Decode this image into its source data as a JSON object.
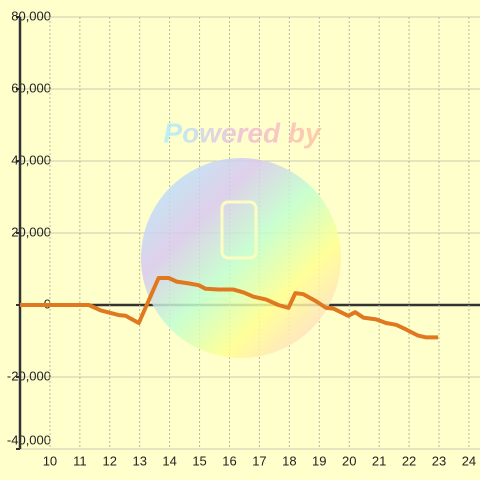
{
  "chart_data": {
    "type": "line",
    "watermark": "Powered by",
    "x": [
      9,
      11.3,
      11.7,
      12.3,
      12.53,
      12.97,
      13.63,
      13.97,
      14.23,
      14.63,
      14.97,
      15.2,
      15.63,
      16.13,
      16.47,
      16.8,
      17.23,
      17.63,
      17.97,
      18.2,
      18.47,
      18.9,
      19.23,
      19.47,
      19.97,
      20.2,
      20.47,
      20.9,
      21.23,
      21.57,
      21.9,
      22.3,
      22.57,
      22.97
    ],
    "series": [
      {
        "color": "#e07820",
        "values": [
          0,
          0,
          -1500,
          -2800,
          -3000,
          -5000,
          7500,
          7500,
          6500,
          6000,
          5500,
          4500,
          4300,
          4300,
          3500,
          2300,
          1500,
          0,
          -800,
          3300,
          3000,
          1000,
          -800,
          -1000,
          -3000,
          -2000,
          -3500,
          -4000,
          -5000,
          -5500,
          -6800,
          -8500,
          -9000,
          -9000
        ]
      }
    ],
    "xlim": [
      9,
      24.37
    ],
    "xticks": [
      10,
      11,
      12,
      13,
      14,
      15,
      16,
      17,
      18,
      19,
      20,
      21,
      22,
      23,
      24
    ],
    "ylim": [
      -40000,
      80000
    ],
    "yticks": [
      {
        "value": -40000,
        "label": "-40,000"
      },
      {
        "value": -20000,
        "label": "-20,000"
      },
      0,
      {
        "value": 20000,
        "label": "20,000"
      },
      {
        "value": 40000,
        "label": "40,000"
      },
      {
        "value": 60000,
        "label": "60,000"
      },
      {
        "value": 80000,
        "label": "80,000"
      }
    ],
    "grid": true
  }
}
